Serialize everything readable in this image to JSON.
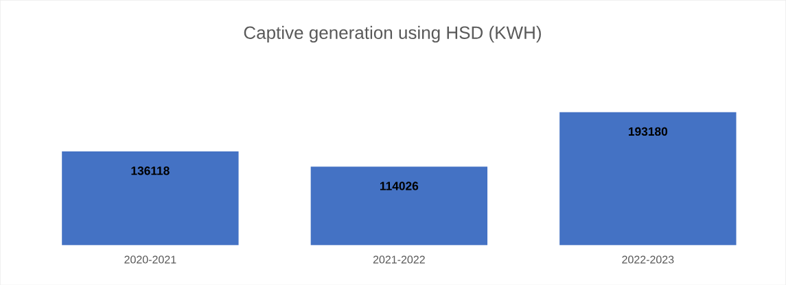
{
  "chart_data": {
    "type": "bar",
    "title": "Captive generation using HSD (KWH)",
    "categories": [
      "2020-2021",
      "2021-2022",
      "2022-2023"
    ],
    "values": [
      136118,
      114026,
      193180
    ],
    "color": "#4472c4",
    "data_labels": true
  }
}
